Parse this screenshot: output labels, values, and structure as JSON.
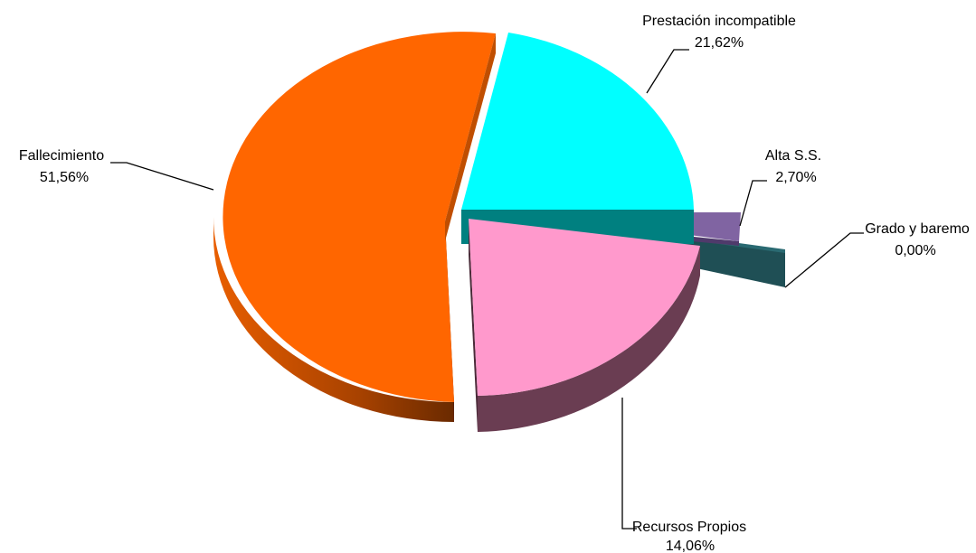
{
  "chart_data": {
    "type": "pie",
    "title": "",
    "slices": [
      {
        "label": "Prestación incompatible",
        "value_label": "21,62%",
        "value": 21.62,
        "color": "#00FFFF",
        "side_color": "#00A5A5"
      },
      {
        "label": "Alta S.S.",
        "value_label": "2,70%",
        "value": 2.7,
        "color": "#8064A2",
        "side_color": "#4F3A6B"
      },
      {
        "label": "Grado y baremo",
        "value_label": "0,00%",
        "value": 0.0,
        "color": "#1F4F55",
        "side_color": "#1A3F44"
      },
      {
        "label": "Recursos Propios",
        "value_label": "14,06%",
        "value": 14.06,
        "color": "#FF99CC",
        "side_color": "#6A3D52"
      },
      {
        "label": "Fallecimiento",
        "value_label": "51,56%",
        "value": 51.56,
        "color": "#FF6600",
        "side_color": "#B84A00"
      }
    ],
    "style": "3d-exploded",
    "legend": "none"
  }
}
